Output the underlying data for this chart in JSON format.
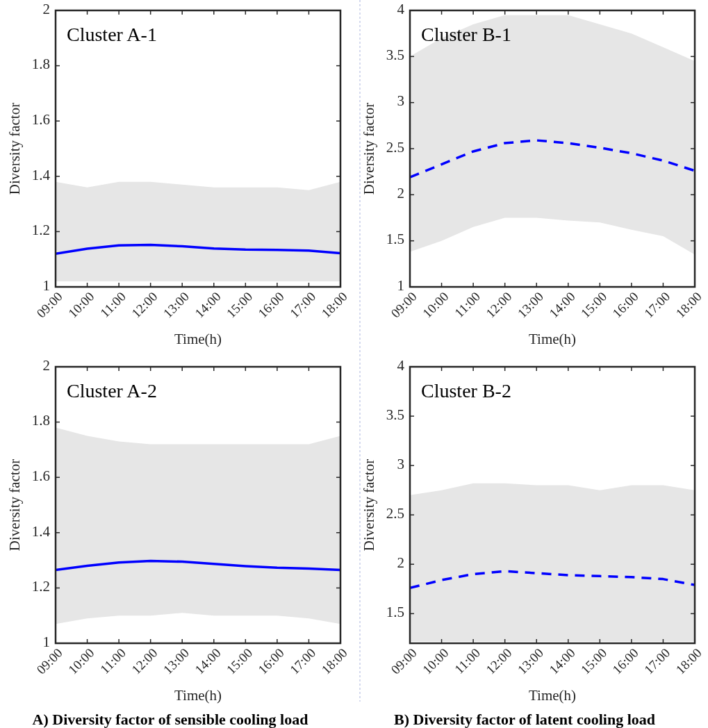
{
  "chart_data": [
    {
      "type": "line",
      "title": "Cluster A-1",
      "xlabel": "Time(h)",
      "ylabel": "Diversity factor",
      "xlim": [
        9,
        18
      ],
      "xticks": [
        {
          "value": 9,
          "label": "09:00"
        },
        {
          "value": 10,
          "label": "10:00"
        },
        {
          "value": 11,
          "label": "11:00"
        },
        {
          "value": 12,
          "label": "12:00"
        },
        {
          "value": 13,
          "label": "13:00"
        },
        {
          "value": 14,
          "label": "14:00"
        },
        {
          "value": 15,
          "label": "15:00"
        },
        {
          "value": 16,
          "label": "16:00"
        },
        {
          "value": 17,
          "label": "17:00"
        },
        {
          "value": 18,
          "label": "18:00"
        }
      ],
      "ylim": [
        1,
        2
      ],
      "yticks": [
        1,
        1.2,
        1.4,
        1.6,
        1.8,
        2
      ],
      "x": [
        9,
        10,
        11,
        12,
        13,
        14,
        15,
        16,
        17,
        18
      ],
      "grid": false,
      "series": [
        {
          "color": "#0000ff",
          "line_style": "solid",
          "values": [
            1.12,
            1.138,
            1.15,
            1.152,
            1.147,
            1.139,
            1.135,
            1.134,
            1.131,
            1.122
          ],
          "lower": [
            1.02,
            1.02,
            1.02,
            1.02,
            1.02,
            1.02,
            1.02,
            1.02,
            1.02,
            1.02
          ],
          "upper": [
            1.38,
            1.36,
            1.38,
            1.38,
            1.37,
            1.36,
            1.36,
            1.36,
            1.35,
            1.38
          ]
        }
      ]
    },
    {
      "type": "line",
      "title": "Cluster B-1",
      "xlabel": "Time(h)",
      "ylabel": "Diversity factor",
      "xlim": [
        9,
        18
      ],
      "xticks": [
        {
          "value": 9,
          "label": "09:00"
        },
        {
          "value": 10,
          "label": "10:00"
        },
        {
          "value": 11,
          "label": "11:00"
        },
        {
          "value": 12,
          "label": "12:00"
        },
        {
          "value": 13,
          "label": "13:00"
        },
        {
          "value": 14,
          "label": "14:00"
        },
        {
          "value": 15,
          "label": "15:00"
        },
        {
          "value": 16,
          "label": "16:00"
        },
        {
          "value": 17,
          "label": "17:00"
        },
        {
          "value": 18,
          "label": "18:00"
        }
      ],
      "ylim": [
        1,
        4
      ],
      "yticks": [
        1,
        1.5,
        2,
        2.5,
        3,
        3.5,
        4
      ],
      "x": [
        9,
        10,
        11,
        12,
        13,
        14,
        15,
        16,
        17,
        18
      ],
      "grid": false,
      "series": [
        {
          "color": "#0000ff",
          "line_style": "dashed",
          "values": [
            2.19,
            2.33,
            2.47,
            2.56,
            2.59,
            2.56,
            2.51,
            2.45,
            2.37,
            2.26
          ],
          "lower": [
            1.38,
            1.5,
            1.65,
            1.75,
            1.75,
            1.72,
            1.7,
            1.62,
            1.55,
            1.35
          ],
          "upper": [
            3.5,
            3.7,
            3.85,
            3.95,
            3.95,
            3.95,
            3.85,
            3.75,
            3.6,
            3.45
          ]
        }
      ]
    },
    {
      "type": "line",
      "title": "Cluster A-2",
      "xlabel": "Time(h)",
      "ylabel": "Diversity factor",
      "xlim": [
        9,
        18
      ],
      "xticks": [
        {
          "value": 9,
          "label": "09:00"
        },
        {
          "value": 10,
          "label": "10:00"
        },
        {
          "value": 11,
          "label": "11:00"
        },
        {
          "value": 12,
          "label": "12:00"
        },
        {
          "value": 13,
          "label": "13:00"
        },
        {
          "value": 14,
          "label": "14:00"
        },
        {
          "value": 15,
          "label": "15:00"
        },
        {
          "value": 16,
          "label": "16:00"
        },
        {
          "value": 17,
          "label": "17:00"
        },
        {
          "value": 18,
          "label": "18:00"
        }
      ],
      "ylim": [
        1,
        2
      ],
      "yticks": [
        1,
        1.2,
        1.4,
        1.6,
        1.8,
        2
      ],
      "x": [
        9,
        10,
        11,
        12,
        13,
        14,
        15,
        16,
        17,
        18
      ],
      "grid": false,
      "annotations": [
        "A) Diversity factor of sensible cooling load"
      ],
      "series": [
        {
          "color": "#0000ff",
          "line_style": "solid",
          "values": [
            1.265,
            1.28,
            1.292,
            1.298,
            1.295,
            1.287,
            1.279,
            1.273,
            1.27,
            1.265
          ],
          "lower": [
            1.07,
            1.09,
            1.1,
            1.1,
            1.11,
            1.1,
            1.1,
            1.1,
            1.09,
            1.07
          ],
          "upper": [
            1.78,
            1.75,
            1.73,
            1.72,
            1.72,
            1.72,
            1.72,
            1.72,
            1.72,
            1.75
          ]
        }
      ]
    },
    {
      "type": "line",
      "title": "Cluster B-2",
      "xlabel": "Time(h)",
      "ylabel": "Diversity factor",
      "xlim": [
        9,
        18
      ],
      "xticks": [
        {
          "value": 9,
          "label": "09:00"
        },
        {
          "value": 10,
          "label": "10:00"
        },
        {
          "value": 11,
          "label": "11:00"
        },
        {
          "value": 12,
          "label": "12:00"
        },
        {
          "value": 13,
          "label": "13:00"
        },
        {
          "value": 14,
          "label": "14:00"
        },
        {
          "value": 15,
          "label": "15:00"
        },
        {
          "value": 16,
          "label": "16:00"
        },
        {
          "value": 17,
          "label": "17:00"
        },
        {
          "value": 18,
          "label": "18:00"
        }
      ],
      "ylim": [
        1.2,
        4
      ],
      "yticks": [
        1.5,
        2,
        2.5,
        3,
        3.5,
        4
      ],
      "x": [
        9,
        10,
        11,
        12,
        13,
        14,
        15,
        16,
        17,
        18
      ],
      "grid": false,
      "annotations": [
        "B) Diversity factor of latent cooling load"
      ],
      "series": [
        {
          "color": "#0000ff",
          "line_style": "dashed",
          "values": [
            1.76,
            1.84,
            1.9,
            1.93,
            1.91,
            1.89,
            1.88,
            1.87,
            1.85,
            1.79
          ],
          "lower": [
            1.22,
            1.22,
            1.22,
            1.22,
            1.22,
            1.22,
            1.22,
            1.22,
            1.22,
            1.22
          ],
          "upper": [
            2.7,
            2.75,
            2.82,
            2.82,
            2.8,
            2.8,
            2.75,
            2.8,
            2.8,
            2.75
          ]
        }
      ]
    }
  ]
}
